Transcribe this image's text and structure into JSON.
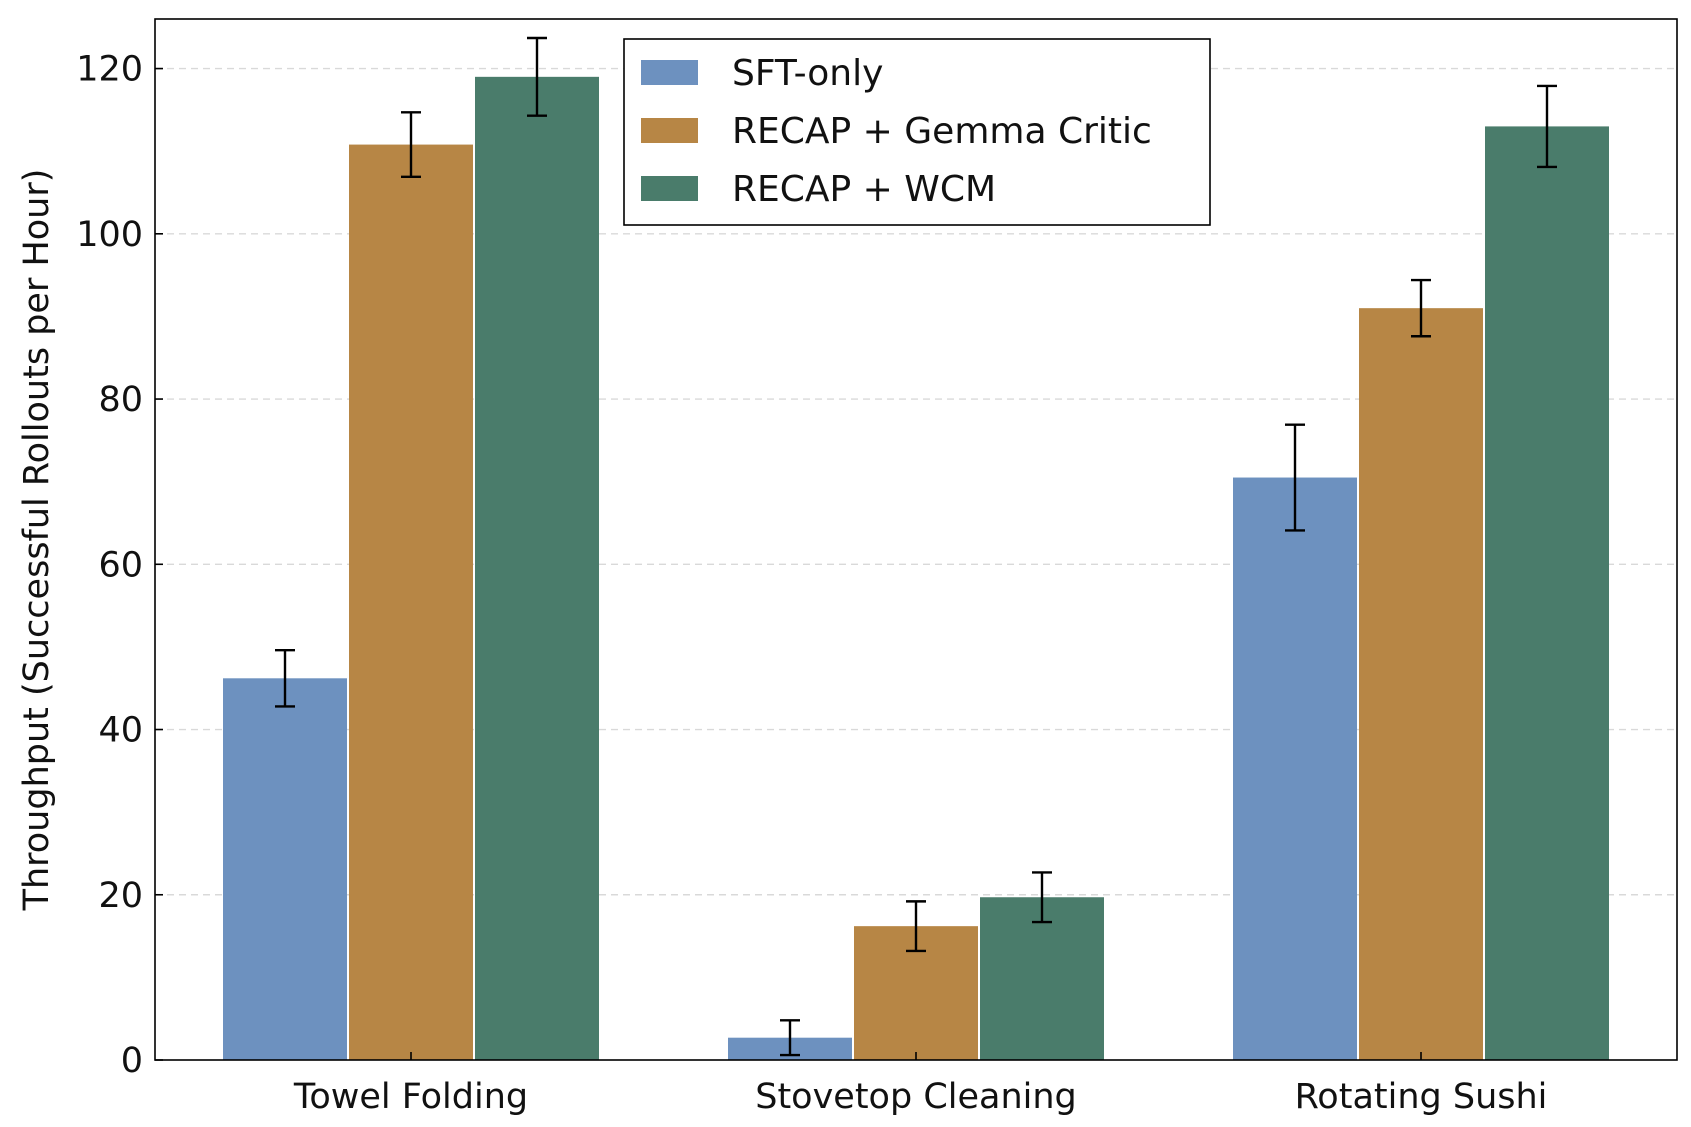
{
  "chart_data": {
    "type": "bar",
    "title": "",
    "xlabel": "",
    "ylabel": "Throughput (Successful Rollouts per Hour)",
    "categories": [
      "Towel Folding",
      "Stovetop Cleaning",
      "Rotating Sushi"
    ],
    "ylim": [
      0,
      126
    ],
    "yticks": [
      0,
      20,
      40,
      60,
      80,
      100,
      120
    ],
    "grid": "y-dashed",
    "legend_position": "top-center",
    "series": [
      {
        "name": "SFT-only",
        "color": "#6d91bf",
        "values": [
          46.2,
          2.7,
          70.5
        ],
        "errors": [
          3.4,
          2.1,
          6.4
        ]
      },
      {
        "name": "RECAP + Gemma Critic",
        "color": "#b78645",
        "values": [
          110.8,
          16.2,
          91.0
        ],
        "errors": [
          3.9,
          3.0,
          3.4
        ]
      },
      {
        "name": "RECAP + WCM",
        "color": "#4a7c6b",
        "values": [
          119.0,
          19.7,
          113.0
        ],
        "errors": [
          4.7,
          3.0,
          4.9
        ]
      }
    ]
  }
}
